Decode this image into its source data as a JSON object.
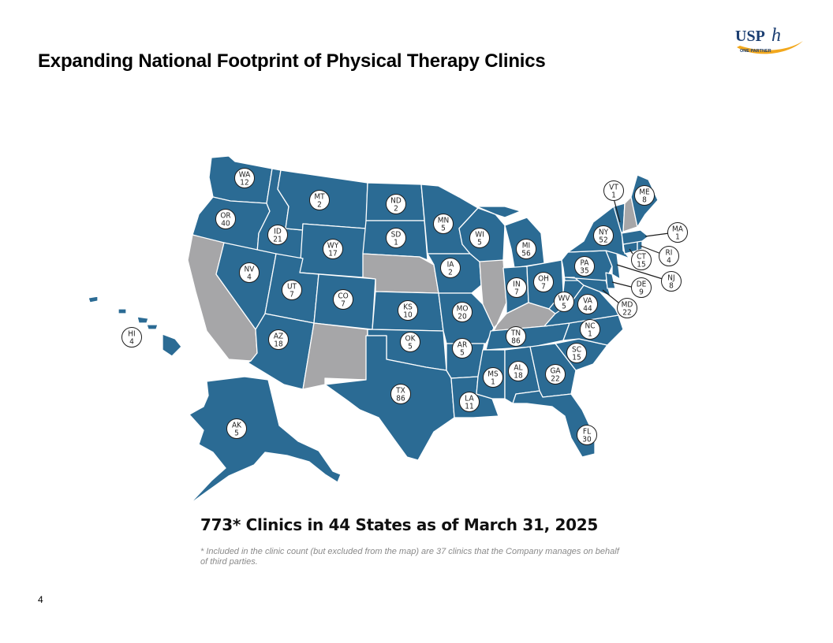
{
  "slide": {
    "title": "Expanding National Footprint of Physical Therapy Clinics",
    "page_number": "4"
  },
  "logo": {
    "text": "USPh",
    "tagline": "ONE PARTNER"
  },
  "summary": {
    "headline": "773* Clinics in 44 States as of March 31, 2025",
    "footnote": "* Included in the clinic count (but excluded from the map) are 37 clinics that the Company manages on behalf of third parties."
  },
  "colors": {
    "active_state": "#2b6b94",
    "inactive_state": "#a6a6a8",
    "border": "#ffffff"
  },
  "states": [
    {
      "code": "WA",
      "count": "12"
    },
    {
      "code": "OR",
      "count": "40"
    },
    {
      "code": "ID",
      "count": "21"
    },
    {
      "code": "MT",
      "count": "2"
    },
    {
      "code": "WY",
      "count": "17"
    },
    {
      "code": "NV",
      "count": "4"
    },
    {
      "code": "UT",
      "count": "7"
    },
    {
      "code": "CO",
      "count": "7"
    },
    {
      "code": "AZ",
      "count": "18"
    },
    {
      "code": "ND",
      "count": "2"
    },
    {
      "code": "SD",
      "count": "1"
    },
    {
      "code": "KS",
      "count": "10"
    },
    {
      "code": "OK",
      "count": "5"
    },
    {
      "code": "TX",
      "count": "86"
    },
    {
      "code": "MN",
      "count": "5"
    },
    {
      "code": "IA",
      "count": "2"
    },
    {
      "code": "MO",
      "count": "20"
    },
    {
      "code": "AR",
      "count": "5"
    },
    {
      "code": "LA",
      "count": "11"
    },
    {
      "code": "WI",
      "count": "5"
    },
    {
      "code": "MI",
      "count": "56"
    },
    {
      "code": "IN",
      "count": "7"
    },
    {
      "code": "OH",
      "count": "7"
    },
    {
      "code": "TN",
      "count": "86"
    },
    {
      "code": "MS",
      "count": "1"
    },
    {
      "code": "AL",
      "count": "18"
    },
    {
      "code": "GA",
      "count": "22"
    },
    {
      "code": "FL",
      "count": "30"
    },
    {
      "code": "SC",
      "count": "15"
    },
    {
      "code": "NC",
      "count": "1"
    },
    {
      "code": "VA",
      "count": "44"
    },
    {
      "code": "WV",
      "count": "5"
    },
    {
      "code": "PA",
      "count": "35"
    },
    {
      "code": "NY",
      "count": "52"
    },
    {
      "code": "VT",
      "count": "1"
    },
    {
      "code": "ME",
      "count": "8"
    },
    {
      "code": "MA",
      "count": "1"
    },
    {
      "code": "RI",
      "count": "4"
    },
    {
      "code": "CT",
      "count": "15"
    },
    {
      "code": "NJ",
      "count": "8"
    },
    {
      "code": "DE",
      "count": "9"
    },
    {
      "code": "MD",
      "count": "22"
    },
    {
      "code": "AK",
      "count": "5"
    },
    {
      "code": "HI",
      "count": "4"
    }
  ],
  "inactive_states": [
    "CA",
    "NM",
    "NE",
    "IL",
    "KY",
    "NH"
  ]
}
